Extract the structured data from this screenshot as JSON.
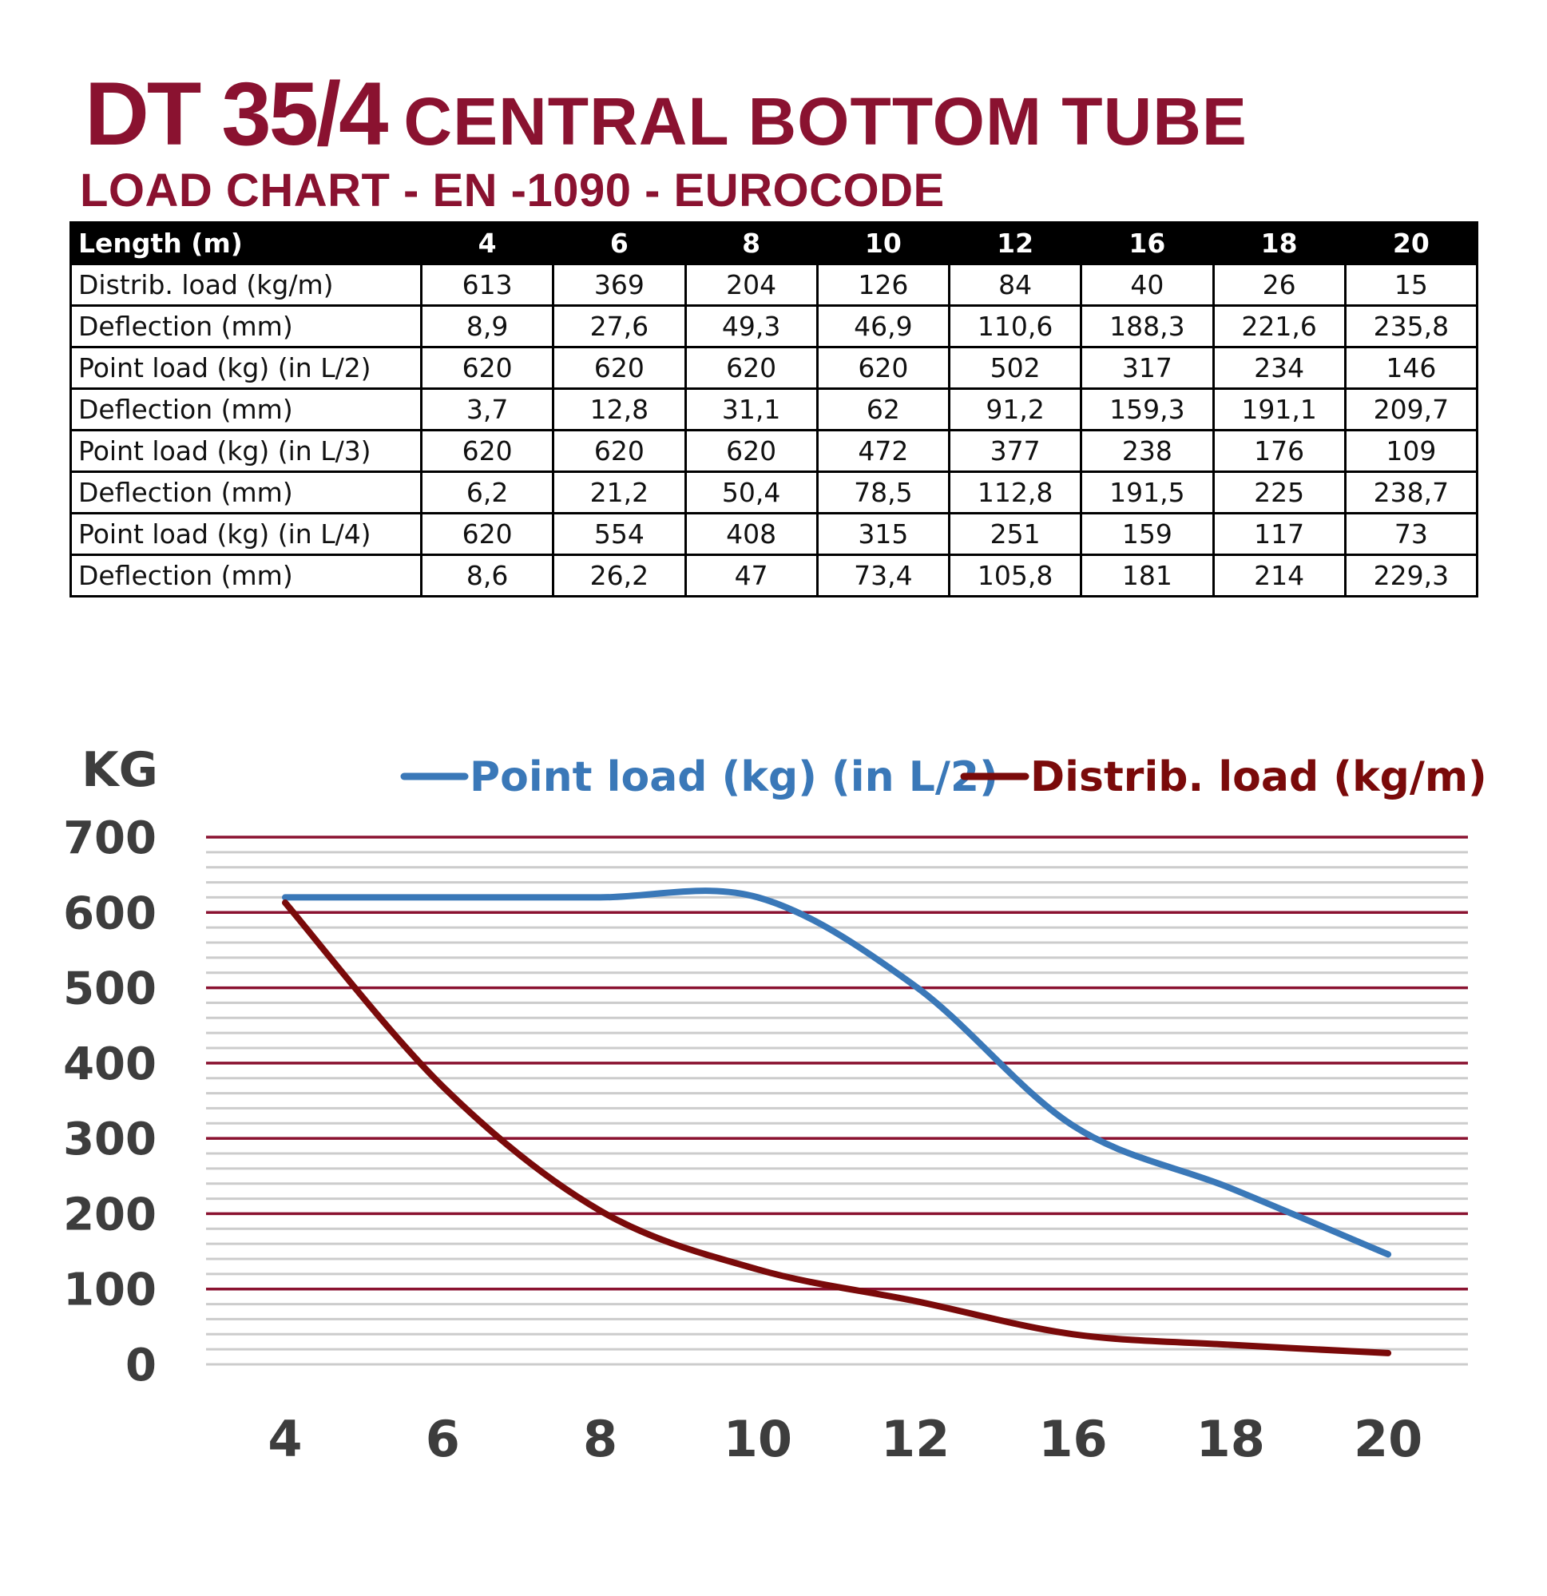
{
  "title": {
    "model": "DT 35/4",
    "name": "CENTRAL BOTTOM TUBE",
    "subtitle": "LOAD CHART - EN -1090 - EUROCODE"
  },
  "colors": {
    "title": "#8a1230",
    "point_load_line": "#3a78b8",
    "distrib_load_line": "#7a0a0a",
    "major_grid": "#8a1230",
    "minor_grid": "#cccccc",
    "axis_text": "#3d3d3d"
  },
  "table": {
    "header_label": "Length (m)",
    "lengths": [
      "4",
      "6",
      "8",
      "10",
      "12",
      "16",
      "18",
      "20"
    ],
    "rows": [
      {
        "label": "Distrib. load (kg/m)",
        "values": [
          "613",
          "369",
          "204",
          "126",
          "84",
          "40",
          "26",
          "15"
        ]
      },
      {
        "label": "Deflection (mm)",
        "values": [
          "8,9",
          "27,6",
          "49,3",
          "46,9",
          "110,6",
          "188,3",
          "221,6",
          "235,8"
        ]
      },
      {
        "label": "Point load (kg) (in L/2)",
        "values": [
          "620",
          "620",
          "620",
          "620",
          "502",
          "317",
          "234",
          "146"
        ]
      },
      {
        "label": "Deflection (mm)",
        "values": [
          "3,7",
          "12,8",
          "31,1",
          "62",
          "91,2",
          "159,3",
          "191,1",
          "209,7"
        ]
      },
      {
        "label": "Point load (kg) (in L/3)",
        "values": [
          "620",
          "620",
          "620",
          "472",
          "377",
          "238",
          "176",
          "109"
        ]
      },
      {
        "label": "Deflection (mm)",
        "values": [
          "6,2",
          "21,2",
          "50,4",
          "78,5",
          "112,8",
          "191,5",
          "225",
          "238,7"
        ]
      },
      {
        "label": "Point load (kg) (in L/4)",
        "values": [
          "620",
          "554",
          "408",
          "315",
          "251",
          "159",
          "117",
          "73"
        ]
      },
      {
        "label": "Deflection (mm)",
        "values": [
          "8,6",
          "26,2",
          "47",
          "73,4",
          "105,8",
          "181",
          "214",
          "229,3"
        ]
      }
    ]
  },
  "chart_data": {
    "type": "line",
    "ylabel": "KG",
    "xlabel": "",
    "categories": [
      "4",
      "6",
      "8",
      "10",
      "12",
      "16",
      "18",
      "20"
    ],
    "ylim": [
      0,
      700
    ],
    "yticks": [
      0,
      100,
      200,
      300,
      400,
      500,
      600,
      700
    ],
    "major_grid_step": 100,
    "minor_grid_step": 20,
    "legend_position": "top",
    "series": [
      {
        "name": "Point load (kg) (in L/2)",
        "values": [
          620,
          620,
          620,
          620,
          502,
          317,
          234,
          146
        ],
        "color": "#3a78b8"
      },
      {
        "name": "Distrib. load (kg/m)",
        "values": [
          613,
          369,
          204,
          126,
          84,
          40,
          26,
          15
        ],
        "color": "#7a0a0a"
      }
    ]
  }
}
